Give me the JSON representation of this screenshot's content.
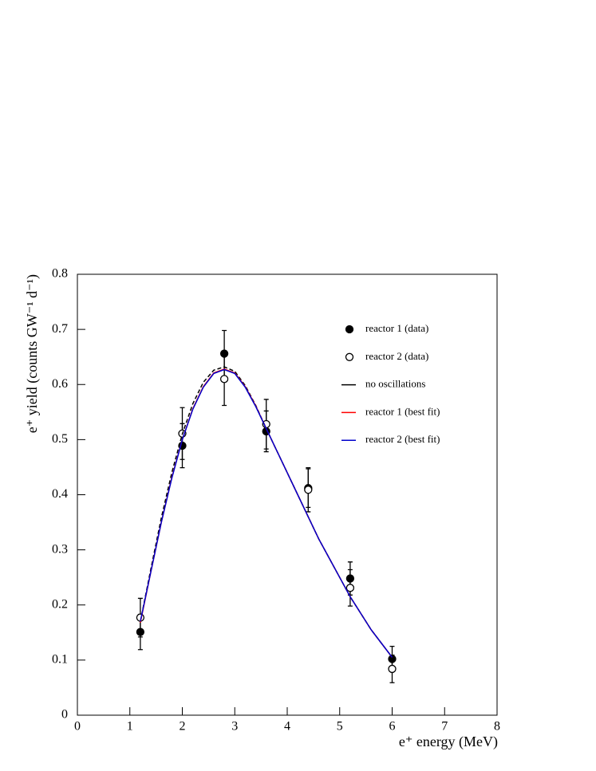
{
  "chart_data": {
    "type": "scatter",
    "xlabel": "e⁺ energy (MeV)",
    "ylabel": "e⁺ yield (counts GW⁻¹ d⁻¹)",
    "xlim": [
      0,
      8
    ],
    "ylim": [
      0,
      0.8
    ],
    "xticks": [
      0,
      1,
      2,
      3,
      4,
      5,
      6,
      7,
      8
    ],
    "yticks": [
      0,
      0.1,
      0.2,
      0.3,
      0.4,
      0.5,
      0.6,
      0.7,
      0.8
    ],
    "legend": "upper right",
    "series": [
      {
        "name": "reactor 1 (data)",
        "color": "#000000",
        "marker": "filled",
        "x": [
          1.2,
          2.0,
          2.8,
          3.6,
          4.4,
          5.2,
          6.0
        ],
        "values": [
          0.151,
          0.489,
          0.656,
          0.515,
          0.412,
          0.248,
          0.102
        ],
        "errors": [
          0.032,
          0.04,
          0.042,
          0.037,
          0.035,
          0.03,
          0.023
        ]
      },
      {
        "name": "reactor 2 (data)",
        "color": "#000000",
        "marker": "open",
        "x": [
          1.2,
          2.0,
          2.8,
          3.6,
          4.4,
          5.2,
          6.0
        ],
        "values": [
          0.177,
          0.511,
          0.61,
          0.528,
          0.409,
          0.231,
          0.084
        ],
        "errors": [
          0.035,
          0.047,
          0.048,
          0.045,
          0.04,
          0.033,
          0.025
        ]
      },
      {
        "name": "no oscillations",
        "color": "#000000",
        "line": "dashed",
        "x": [
          1.2,
          1.4,
          1.6,
          1.8,
          2.0,
          2.2,
          2.4,
          2.6,
          2.8,
          3.0,
          3.2,
          3.4,
          3.6,
          3.8,
          4.0,
          4.2,
          4.4,
          4.6,
          4.8,
          5.0,
          5.2,
          5.4,
          5.6,
          5.8,
          6.0
        ],
        "values": [
          0.17,
          0.265,
          0.358,
          0.44,
          0.51,
          0.565,
          0.604,
          0.626,
          0.632,
          0.624,
          0.598,
          0.562,
          0.52,
          0.48,
          0.44,
          0.4,
          0.36,
          0.32,
          0.285,
          0.25,
          0.215,
          0.185,
          0.155,
          0.13,
          0.105
        ]
      },
      {
        "name": "reactor 1 (best fit)",
        "color": "#ff0000",
        "line": "solid",
        "x": [
          1.2,
          1.4,
          1.6,
          1.8,
          2.0,
          2.2,
          2.4,
          2.6,
          2.8,
          3.0,
          3.2,
          3.4,
          3.6,
          3.8,
          4.0,
          4.2,
          4.4,
          4.6,
          4.8,
          5.0,
          5.2,
          5.4,
          5.6,
          5.8,
          6.0
        ],
        "values": [
          0.168,
          0.26,
          0.35,
          0.431,
          0.5,
          0.556,
          0.596,
          0.621,
          0.628,
          0.621,
          0.596,
          0.561,
          0.52,
          0.48,
          0.44,
          0.4,
          0.36,
          0.32,
          0.285,
          0.25,
          0.215,
          0.185,
          0.155,
          0.13,
          0.105
        ]
      },
      {
        "name": "reactor 2 (best fit)",
        "color": "#0000cc",
        "line": "solid",
        "x": [
          1.2,
          1.4,
          1.6,
          1.8,
          2.0,
          2.2,
          2.4,
          2.6,
          2.8,
          3.0,
          3.2,
          3.4,
          3.6,
          3.8,
          4.0,
          4.2,
          4.4,
          4.6,
          4.8,
          5.0,
          5.2,
          5.4,
          5.6,
          5.8,
          6.0
        ],
        "values": [
          0.17,
          0.26,
          0.35,
          0.43,
          0.5,
          0.555,
          0.595,
          0.62,
          0.627,
          0.62,
          0.595,
          0.56,
          0.52,
          0.48,
          0.44,
          0.4,
          0.36,
          0.32,
          0.285,
          0.25,
          0.215,
          0.185,
          0.155,
          0.13,
          0.105
        ]
      }
    ]
  }
}
